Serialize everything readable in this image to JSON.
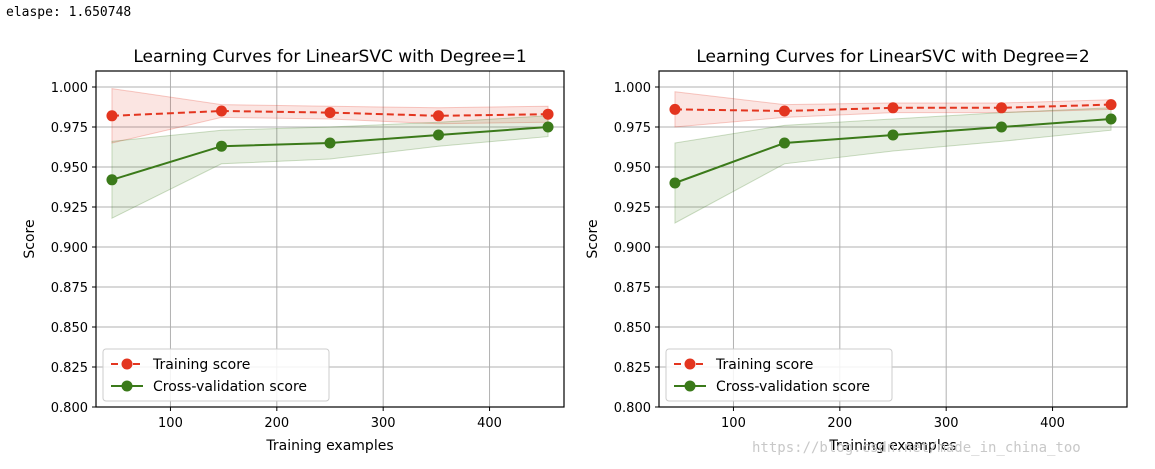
{
  "header": {
    "elapse_text": "elaspe: 1.650748"
  },
  "watermark": "https://blog.csdn.net/made_in_china_too",
  "chart_data": [
    {
      "type": "line",
      "title": "Learning Curves for LinearSVC with Degree=1",
      "xlabel": "Training examples",
      "ylabel": "Score",
      "xlim": [
        30,
        470
      ],
      "ylim": [
        0.8,
        1.01
      ],
      "xticks": [
        "100",
        "200",
        "300",
        "400"
      ],
      "yticks": [
        "0.800",
        "0.825",
        "0.850",
        "0.875",
        "0.900",
        "0.925",
        "0.950",
        "0.975",
        "1.000"
      ],
      "grid": true,
      "legend_position": "lower-left",
      "x": [
        45,
        148,
        250,
        352,
        455
      ],
      "series": [
        {
          "name": "Training score",
          "color": "#e3351f",
          "style": "dashed",
          "values": [
            0.982,
            0.985,
            0.984,
            0.982,
            0.983
          ],
          "band_low": [
            0.965,
            0.981,
            0.98,
            0.977,
            0.978
          ],
          "band_high": [
            0.999,
            0.989,
            0.988,
            0.987,
            0.988
          ]
        },
        {
          "name": "Cross-validation score",
          "color": "#3b7a1a",
          "style": "solid",
          "values": [
            0.942,
            0.963,
            0.965,
            0.97,
            0.975
          ],
          "band_low": [
            0.918,
            0.952,
            0.955,
            0.963,
            0.969
          ],
          "band_high": [
            0.966,
            0.973,
            0.975,
            0.978,
            0.982
          ]
        }
      ]
    },
    {
      "type": "line",
      "title": "Learning Curves for LinearSVC with Degree=2",
      "xlabel": "Training examples",
      "ylabel": "Score",
      "xlim": [
        30,
        470
      ],
      "ylim": [
        0.8,
        1.01
      ],
      "xticks": [
        "100",
        "200",
        "300",
        "400"
      ],
      "yticks": [
        "0.800",
        "0.825",
        "0.850",
        "0.875",
        "0.900",
        "0.925",
        "0.950",
        "0.975",
        "1.000"
      ],
      "grid": true,
      "legend_position": "lower-left",
      "x": [
        45,
        148,
        250,
        352,
        455
      ],
      "series": [
        {
          "name": "Training score",
          "color": "#e3351f",
          "style": "dashed",
          "values": [
            0.986,
            0.985,
            0.987,
            0.987,
            0.989
          ],
          "band_low": [
            0.975,
            0.981,
            0.984,
            0.984,
            0.986
          ],
          "band_high": [
            0.997,
            0.989,
            0.99,
            0.99,
            0.992
          ]
        },
        {
          "name": "Cross-validation score",
          "color": "#3b7a1a",
          "style": "solid",
          "values": [
            0.94,
            0.965,
            0.97,
            0.975,
            0.98
          ],
          "band_low": [
            0.915,
            0.952,
            0.96,
            0.966,
            0.973
          ],
          "band_high": [
            0.965,
            0.976,
            0.98,
            0.984,
            0.987
          ]
        }
      ]
    }
  ]
}
